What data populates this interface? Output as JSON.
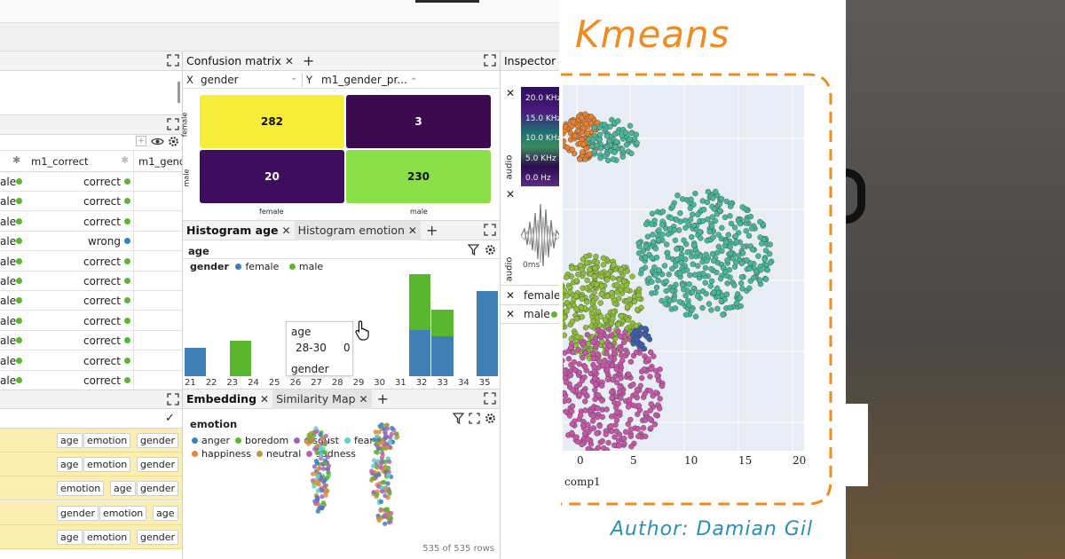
{
  "left_panel": {
    "column_headers": {
      "col1": "m1_correct",
      "col2": "m1_gende"
    },
    "rows": [
      {
        "c1": "ale",
        "c2": "correct",
        "d2": "#5ab52f"
      },
      {
        "c1": "ale",
        "c2": "correct",
        "d2": "#5ab52f"
      },
      {
        "c1": "ale",
        "c2": "correct",
        "d2": "#5ab52f"
      },
      {
        "c1": "ale",
        "c2": "wrong",
        "d2": "#3f7fb5"
      },
      {
        "c1": "ale",
        "c2": "correct",
        "d2": "#5ab52f"
      },
      {
        "c1": "ale",
        "c2": "correct",
        "d2": "#5ab52f"
      },
      {
        "c1": "ale",
        "c2": "correct",
        "d2": "#5ab52f"
      },
      {
        "c1": "ale",
        "c2": "correct",
        "d2": "#5ab52f"
      },
      {
        "c1": "ale",
        "c2": "correct",
        "d2": "#5ab52f"
      },
      {
        "c1": "ale",
        "c2": "correct",
        "d2": "#5ab52f"
      },
      {
        "c1": "ale",
        "c2": "correct",
        "d2": "#5ab52f"
      }
    ],
    "check_mark": "✓",
    "chip_rows": [
      [
        "age",
        "emotion",
        "gender"
      ],
      [
        "age",
        "emotion",
        "gender"
      ],
      [
        "emotion",
        "age",
        "gender"
      ],
      [
        "gender",
        "emotion",
        "age"
      ],
      [
        "age",
        "emotion",
        "gender"
      ]
    ]
  },
  "confusion": {
    "tab_label": "Confusion matrix",
    "x_label": "X",
    "x_value": "gender",
    "y_label": "Y",
    "y_value": "m1_gender_pr...",
    "cells": [
      {
        "value": "282",
        "color": "#f6ec3a",
        "text_color": "#111"
      },
      {
        "value": "3",
        "color": "#3b0a4f",
        "text_color": "#fff"
      },
      {
        "value": "20",
        "color": "#3e0e5c",
        "text_color": "#fff"
      },
      {
        "value": "230",
        "color": "#8be04a",
        "text_color": "#111"
      }
    ],
    "row_labels": [
      "female",
      "male"
    ],
    "col_labels": [
      "female",
      "male"
    ]
  },
  "histogram": {
    "tab1": "Histogram age",
    "tab2": "Histogram emotion",
    "column": "age",
    "legend_title": "gender",
    "legend": [
      {
        "name": "female",
        "color": "#3f7fb5"
      },
      {
        "name": "male",
        "color": "#5ab52f"
      }
    ],
    "ticks": [
      "21",
      "22",
      "23",
      "24",
      "25",
      "26",
      "27",
      "28",
      "29",
      "30",
      "31",
      "32",
      "33",
      "34",
      "35"
    ],
    "tooltip": {
      "title": "age",
      "range": "28-30",
      "count": "0",
      "footer": "gender"
    }
  },
  "chart_data": {
    "type": "bar",
    "categories": [
      "21",
      "22",
      "23",
      "24",
      "25",
      "26",
      "27",
      "28",
      "29",
      "30",
      "31",
      "32",
      "33",
      "34",
      "35"
    ],
    "series": [
      {
        "name": "female",
        "values": [
          32,
          0,
          0,
          0,
          0,
          0,
          0,
          0,
          0,
          0,
          52,
          45,
          0,
          95,
          0
        ]
      },
      {
        "name": "male",
        "values": [
          0,
          0,
          40,
          0,
          0,
          0,
          0,
          0,
          0,
          0,
          62,
          29,
          0,
          0,
          0
        ]
      }
    ]
  },
  "embedding": {
    "tab1": "Embedding",
    "tab2": "Similarity Map",
    "legend_title": "emotion",
    "legend": [
      {
        "name": "anger",
        "color": "#3f7fb5"
      },
      {
        "name": "boredom",
        "color": "#5ab52f"
      },
      {
        "name": "disgust",
        "color": "#a060c0"
      },
      {
        "name": "fear",
        "color": "#5fcfd0"
      },
      {
        "name": "happiness",
        "color": "#e08a3a"
      },
      {
        "name": "neutral",
        "color": "#b79a3a"
      },
      {
        "name": "sadness",
        "color": "#c060b0"
      }
    ],
    "row_count": "535 of 535 rows"
  },
  "inspector": {
    "tab_label": "Inspector",
    "freq_labels": [
      "20.0 KHz",
      "15.0 KHz",
      "10.0 KHz",
      "5.0 KHz",
      "0.0 Hz"
    ],
    "audio_label": "audio",
    "time_label": "0ms",
    "rows": [
      {
        "label": "female",
        "color": "#3f7fb5"
      },
      {
        "label": "male",
        "color": "#5ab52f"
      }
    ]
  },
  "kmeans": {
    "title": "Kmeans",
    "x_axis_label": "comp1",
    "x_ticks": [
      "0",
      "5",
      "10",
      "15",
      "20"
    ],
    "author": "Author: Damian Gil"
  }
}
